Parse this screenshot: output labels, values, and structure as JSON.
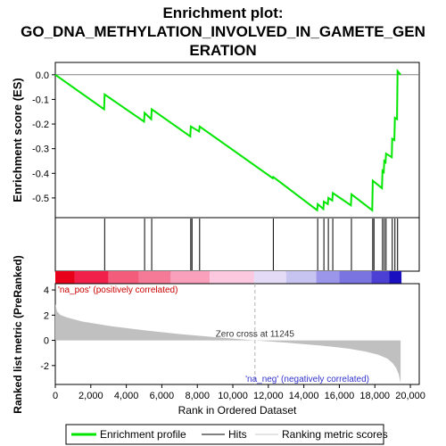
{
  "chart_data": {
    "type": "line",
    "title_lines": [
      "Enrichment plot:",
      "GO_DNA_METHYLATION_INVOLVED_IN_GAMETE_GEN",
      "ERATION"
    ],
    "es_panel": {
      "ylabel": "Enrichment score (ES)",
      "ylim": [
        -0.58,
        0.05
      ],
      "yticks": [
        "0.0",
        "-0.1",
        "-0.2",
        "-0.3",
        "-0.4",
        "-0.5"
      ],
      "ytick_values": [
        0.0,
        -0.1,
        -0.2,
        -0.3,
        -0.4,
        -0.5
      ],
      "line_color": "#00e600",
      "x": [
        0,
        2750,
        2780,
        5000,
        5030,
        5400,
        5430,
        7600,
        7630,
        8100,
        8130,
        12250,
        12280,
        14750,
        14780,
        15100,
        15130,
        15350,
        15380,
        15600,
        15630,
        16650,
        16680,
        17850,
        17880,
        18400,
        18430,
        18500,
        18530,
        18600,
        18630,
        18950,
        18980,
        19100,
        19130,
        19250,
        19280,
        19450
      ],
      "y": [
        0.0,
        -0.14,
        -0.08,
        -0.19,
        -0.155,
        -0.18,
        -0.14,
        -0.25,
        -0.21,
        -0.23,
        -0.21,
        -0.42,
        -0.415,
        -0.55,
        -0.525,
        -0.545,
        -0.515,
        -0.525,
        -0.5,
        -0.51,
        -0.48,
        -0.53,
        -0.485,
        -0.55,
        -0.43,
        -0.46,
        -0.39,
        -0.395,
        -0.35,
        -0.355,
        -0.32,
        -0.335,
        -0.26,
        -0.265,
        -0.175,
        -0.18,
        0.015,
        0.0
      ]
    },
    "hits": [
      2780,
      5030,
      5430,
      7630,
      7700,
      8130,
      12280,
      14780,
      15130,
      15380,
      15630,
      16680,
      17880,
      17950,
      18430,
      18530,
      18630,
      18980,
      19130,
      19280
    ],
    "ranked_panel": {
      "ylabel": "Ranked list metric (PreRanked)",
      "ylim": [
        -3.5,
        4.5
      ],
      "yticks": [
        "4",
        "2",
        "0",
        "-2"
      ],
      "ytick_values": [
        4,
        2,
        0,
        -2
      ],
      "curve_x": [
        0,
        100,
        300,
        700,
        1500,
        3000,
        5000,
        7000,
        9000,
        11245,
        13000,
        15000,
        16500,
        17500,
        18200,
        18700,
        19000,
        19200,
        19350,
        19450
      ],
      "curve_y": [
        2.9,
        2.3,
        2.0,
        1.8,
        1.5,
        1.15,
        0.8,
        0.5,
        0.25,
        0.0,
        -0.18,
        -0.42,
        -0.65,
        -0.9,
        -1.15,
        -1.45,
        -1.8,
        -2.2,
        -2.7,
        -3.4
      ],
      "zero_cross_label": "Zero cross at 11245",
      "zero_cross_x": 11245,
      "pos_label": "'na_pos' (positively correlated)",
      "neg_label": "'na_neg' (negatively correlated)",
      "pos_color": "#cc0000",
      "neg_color": "#3333cc"
    },
    "xlabel": "Rank in Ordered Dataset",
    "xlim": [
      0,
      20500
    ],
    "xticks": [
      "0",
      "2,000",
      "4,000",
      "6,000",
      "8,000",
      "10,000",
      "12,000",
      "14,000",
      "16,000",
      "18,000",
      "20,000"
    ],
    "xtick_values": [
      0,
      2000,
      4000,
      6000,
      8000,
      10000,
      12000,
      14000,
      16000,
      18000,
      20000
    ],
    "legend": {
      "items": [
        "Enrichment profile",
        "Hits",
        "Ranking metric scores"
      ],
      "colors": [
        "#00e600",
        "#000000",
        "#c8c8c8"
      ]
    }
  }
}
